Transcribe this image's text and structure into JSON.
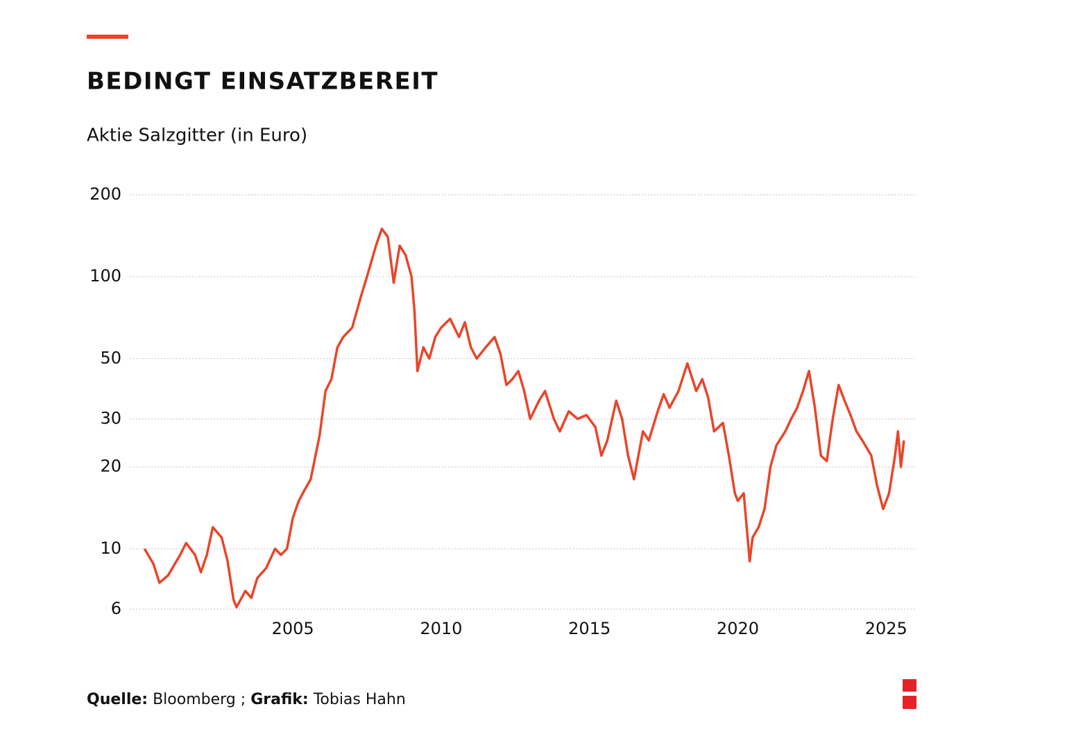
{
  "chart_data": {
    "type": "line",
    "title": "BEDINGT EINSATZBEREIT",
    "subtitle": "Aktie Salzgitter (in Euro)",
    "source_label": "Quelle:",
    "source": "Bloomberg ;",
    "credit_label": "Grafik:",
    "credit": "Tobias Hahn",
    "color": "#e8452a",
    "log_y": true,
    "grid": true,
    "xlim": [
      1999.5,
      2026
    ],
    "xticks": [
      2005,
      2010,
      2015,
      2020,
      2025
    ],
    "ylim": [
      6,
      200
    ],
    "yticks": [
      6,
      10,
      20,
      30,
      50,
      100,
      200
    ],
    "x": [
      2000.0,
      2000.3,
      2000.5,
      2000.8,
      2001.2,
      2001.4,
      2001.7,
      2001.9,
      2002.1,
      2002.3,
      2002.6,
      2002.8,
      2003.0,
      2003.1,
      2003.4,
      2003.6,
      2003.8,
      2004.1,
      2004.4,
      2004.6,
      2004.8,
      2005.0,
      2005.2,
      2005.4,
      2005.6,
      2005.9,
      2006.1,
      2006.3,
      2006.5,
      2006.7,
      2007.0,
      2007.3,
      2007.5,
      2007.8,
      2008.0,
      2008.2,
      2008.4,
      2008.6,
      2008.8,
      2009.0,
      2009.1,
      2009.2,
      2009.4,
      2009.6,
      2009.8,
      2010.0,
      2010.3,
      2010.6,
      2010.8,
      2011.0,
      2011.2,
      2011.5,
      2011.8,
      2012.0,
      2012.2,
      2012.4,
      2012.6,
      2012.8,
      2013.0,
      2013.3,
      2013.5,
      2013.8,
      2014.0,
      2014.3,
      2014.6,
      2014.9,
      2015.2,
      2015.4,
      2015.6,
      2015.9,
      2016.1,
      2016.3,
      2016.5,
      2016.8,
      2017.0,
      2017.3,
      2017.5,
      2017.7,
      2018.0,
      2018.3,
      2018.6,
      2018.8,
      2019.0,
      2019.2,
      2019.5,
      2019.7,
      2019.9,
      2020.0,
      2020.2,
      2020.4,
      2020.5,
      2020.7,
      2020.9,
      2021.1,
      2021.3,
      2021.6,
      2021.8,
      2022.0,
      2022.2,
      2022.4,
      2022.6,
      2022.8,
      2023.0,
      2023.2,
      2023.4,
      2023.6,
      2023.8,
      2024.0,
      2024.2,
      2024.5,
      2024.7,
      2024.9,
      2025.1,
      2025.3,
      2025.4,
      2025.5,
      2025.6
    ],
    "values": [
      10,
      8.8,
      7.5,
      8,
      9.5,
      10.5,
      9.5,
      8.2,
      9.5,
      12,
      11,
      9,
      6.5,
      6.1,
      7,
      6.6,
      7.8,
      8.5,
      10,
      9.5,
      10,
      13,
      15,
      16.5,
      18,
      26,
      38,
      42,
      55,
      60,
      65,
      85,
      100,
      130,
      150,
      140,
      95,
      130,
      120,
      100,
      75,
      45,
      55,
      50,
      60,
      65,
      70,
      60,
      68,
      55,
      50,
      55,
      60,
      52,
      40,
      42,
      45,
      38,
      30,
      35,
      38,
      30,
      27,
      32,
      30,
      31,
      28,
      22,
      25,
      35,
      30,
      22,
      18,
      27,
      25,
      32,
      37,
      33,
      38,
      48,
      38,
      42,
      36,
      27,
      29,
      22,
      16,
      15,
      16,
      9,
      11,
      12,
      14,
      20,
      24,
      27,
      30,
      33,
      38,
      45,
      33,
      22,
      21,
      30,
      40,
      35,
      31,
      27,
      25,
      22,
      17,
      14,
      16,
      22,
      27,
      20,
      25
    ]
  }
}
